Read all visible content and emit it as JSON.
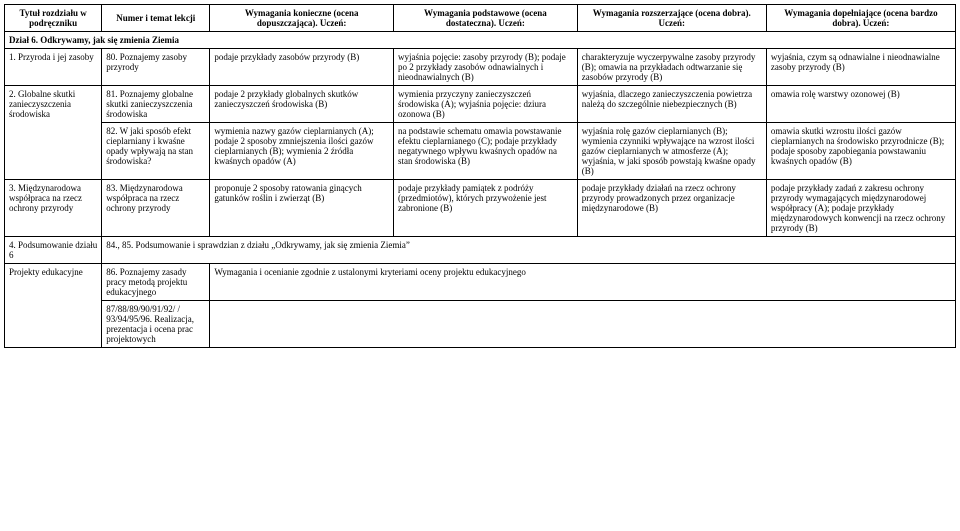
{
  "header": {
    "c0": "Tytuł rozdziału w podręczniku",
    "c1": "Numer i temat lekcji",
    "c2": "Wymagania konieczne (ocena dopuszczająca). Uczeń:",
    "c3": "Wymagania podstawowe (ocena dostateczna). Uczeń:",
    "c4": "Wymagania rozszerzające (ocena dobra). Uczeń:",
    "c5": "Wymagania dopełniające (ocena bardzo dobra). Uczeń:"
  },
  "section1": "Dział 6. Odkrywamy, jak się zmienia Ziemia",
  "r1": {
    "c0": "1. Przyroda i jej zasoby",
    "c1": "80. Poznajemy zasoby przyrody",
    "c2": "podaje przykłady zasobów przyrody (B)",
    "c3": "wyjaśnia pojęcie: zasoby przyrody (B); podaje po 2 przykłady zasobów odnawialnych i nieodnawialnych (B)",
    "c4": "charakteryzuje wyczerpywalne zasoby przyrody (B); omawia na przykładach odtwarzanie się zasobów przyrody (B)",
    "c5": "wyjaśnia, czym są odnawialne i nieodnawialne zasoby przyrody (B)"
  },
  "r2a": {
    "c0": "2. Globalne skutki zanieczyszczenia środowiska",
    "c1": "81. Poznajemy globalne skutki zanieczyszczenia środowiska",
    "c2": "podaje 2 przykłady globalnych skutków zanieczyszczeń środowiska (B)",
    "c3": "wymienia przyczyny zanieczyszczeń środowiska (A); wyjaśnia pojęcie: dziura ozonowa (B)",
    "c4": "wyjaśnia, dlaczego zanieczyszczenia powietrza należą do szczególnie niebezpiecznych (B)",
    "c5": "omawia rolę warstwy ozonowej (B)"
  },
  "r2b": {
    "c1": "82. W jaki sposób efekt cieplarniany i kwaśne opady wpływają na stan środowiska?",
    "c2": "wymienia nazwy gazów cieplarnianych (A); podaje 2 sposoby zmniejszenia ilości gazów cieplarnianych (B); wymienia 2 źródła kwaśnych opadów (A)",
    "c3": "na podstawie schematu omawia powstawanie efektu cieplarnianego (C); podaje przykłady negatywnego wpływu kwaśnych opadów na stan środowiska (B)",
    "c4": "wyjaśnia rolę gazów cieplarnianych (B); wymienia czynniki wpływające na wzrost ilości gazów cieplarnianych w atmosferze (A); wyjaśnia, w jaki sposób powstają kwaśne opady (B)",
    "c5": "omawia skutki wzrostu ilości gazów cieplarnianych na środowisko przyrodnicze (B); podaje sposoby zapobiegania powstawaniu kwaśnych opadów (B)"
  },
  "r3": {
    "c0": "3. Międzynarodowa współpraca na rzecz ochrony przyrody",
    "c1": "83. Międzynarodowa współpraca na rzecz ochrony przyrody",
    "c2": "proponuje 2 sposoby ratowania ginących gatunków roślin i zwierząt (B)",
    "c3": "podaje przykłady pamiątek z podróży (przedmiotów), których przywożenie jest zabronione (B)",
    "c4": "podaje przykłady działań na rzecz ochrony przyrody prowadzonych przez organizacje międzynarodowe (B)",
    "c5": "podaje przykłady zadań z zakresu ochrony przyrody wymagających międzynarodowej współpracy (A); podaje przykłady międzynarodowych konwencji na rzecz ochrony przyrody (B)"
  },
  "r4": {
    "c0": "4. Podsumowanie działu 6",
    "c1": "84., 85. Podsumowanie i sprawdzian z działu „Odkrywamy, jak się zmienia Ziemia”"
  },
  "r5a": {
    "c0": "Projekty edukacyjne",
    "c1": "86. Poznajemy zasady pracy metodą projektu edukacyjnego",
    "c2": "Wymagania i ocenianie zgodnie z ustalonymi kryteriami oceny projektu edukacyjnego"
  },
  "r5b": {
    "c1": "87/88/89/90/91/92/ / 93/94/95/96. Realizacja, prezentacja i ocena prac projektowych"
  }
}
